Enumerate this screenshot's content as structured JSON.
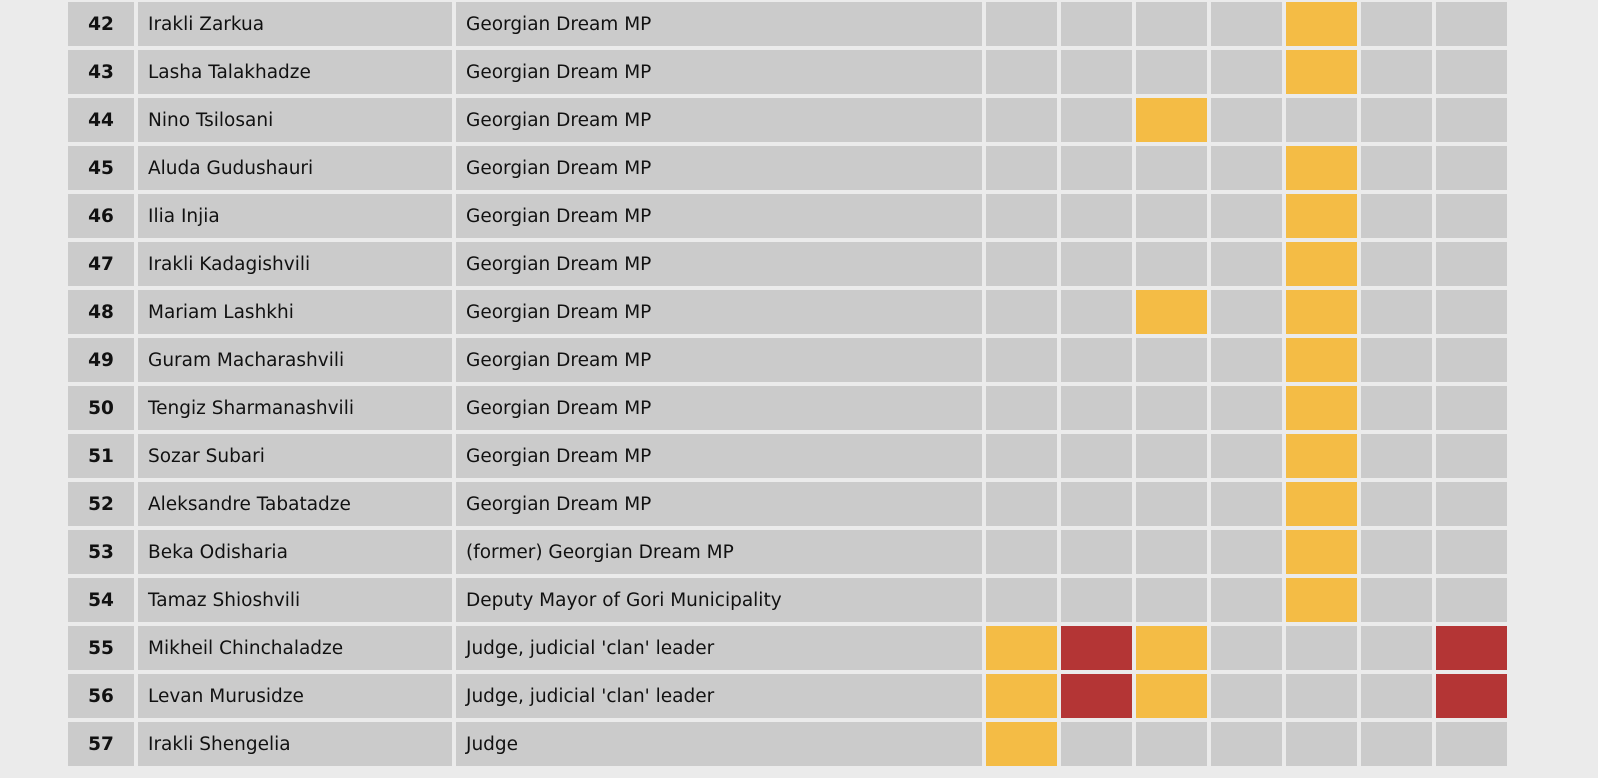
{
  "colors": {
    "page_background": "#ebebeb",
    "cell": "#cbcbcb",
    "yellow": "#f4bc45",
    "red": "#b43535"
  },
  "legend_codes": {
    "0": "empty",
    "1": "yellow",
    "2": "red"
  },
  "rows": [
    {
      "num": "42",
      "name": "Irakli Zarkua",
      "role": "Georgian Dream MP",
      "marks": [
        0,
        0,
        0,
        0,
        1,
        0,
        0
      ]
    },
    {
      "num": "43",
      "name": "Lasha Talakhadze",
      "role": "Georgian Dream MP",
      "marks": [
        0,
        0,
        0,
        0,
        1,
        0,
        0
      ]
    },
    {
      "num": "44",
      "name": "Nino Tsilosani",
      "role": "Georgian Dream MP",
      "marks": [
        0,
        0,
        1,
        0,
        0,
        0,
        0
      ]
    },
    {
      "num": "45",
      "name": "Aluda Gudushauri",
      "role": "Georgian Dream MP",
      "marks": [
        0,
        0,
        0,
        0,
        1,
        0,
        0
      ]
    },
    {
      "num": "46",
      "name": "Ilia Injia",
      "role": "Georgian Dream MP",
      "marks": [
        0,
        0,
        0,
        0,
        1,
        0,
        0
      ]
    },
    {
      "num": "47",
      "name": "Irakli Kadagishvili",
      "role": "Georgian Dream MP",
      "marks": [
        0,
        0,
        0,
        0,
        1,
        0,
        0
      ]
    },
    {
      "num": "48",
      "name": "Mariam Lashkhi",
      "role": "Georgian Dream MP",
      "marks": [
        0,
        0,
        1,
        0,
        1,
        0,
        0
      ]
    },
    {
      "num": "49",
      "name": "Guram Macharashvili",
      "role": "Georgian Dream MP",
      "marks": [
        0,
        0,
        0,
        0,
        1,
        0,
        0
      ]
    },
    {
      "num": "50",
      "name": "Tengiz Sharmanashvili",
      "role": "Georgian Dream MP",
      "marks": [
        0,
        0,
        0,
        0,
        1,
        0,
        0
      ]
    },
    {
      "num": "51",
      "name": "Sozar Subari",
      "role": "Georgian Dream MP",
      "marks": [
        0,
        0,
        0,
        0,
        1,
        0,
        0
      ]
    },
    {
      "num": "52",
      "name": "Aleksandre Tabatadze",
      "role": "Georgian Dream MP",
      "marks": [
        0,
        0,
        0,
        0,
        1,
        0,
        0
      ]
    },
    {
      "num": "53",
      "name": "Beka Odisharia",
      "role": "(former) Georgian Dream MP",
      "marks": [
        0,
        0,
        0,
        0,
        1,
        0,
        0
      ]
    },
    {
      "num": "54",
      "name": "Tamaz Shioshvili",
      "role": "Deputy Mayor of Gori Municipality",
      "marks": [
        0,
        0,
        0,
        0,
        1,
        0,
        0
      ]
    },
    {
      "num": "55",
      "name": "Mikheil Chinchaladze",
      "role": "Judge, judicial 'clan' leader",
      "marks": [
        1,
        2,
        1,
        0,
        0,
        0,
        2
      ]
    },
    {
      "num": "56",
      "name": "Levan Murusidze",
      "role": "Judge, judicial 'clan' leader",
      "marks": [
        1,
        2,
        1,
        0,
        0,
        0,
        2
      ]
    },
    {
      "num": "57",
      "name": "Irakli Shengelia",
      "role": "Judge",
      "marks": [
        1,
        0,
        0,
        0,
        0,
        0,
        0
      ]
    }
  ]
}
